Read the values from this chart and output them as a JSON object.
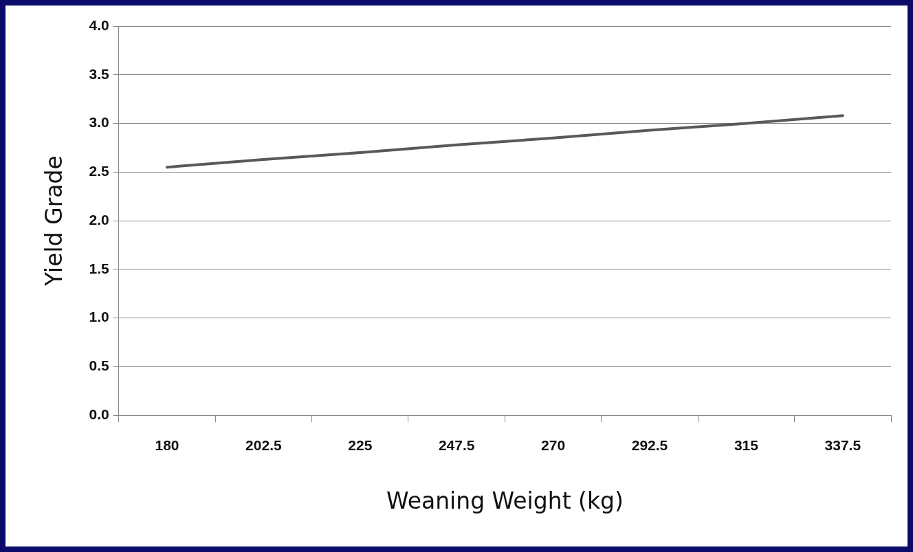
{
  "chart_data": {
    "type": "line",
    "xlabel": "Weaning Weight (kg)",
    "ylabel": "Yield Grade",
    "categories": [
      "180",
      "202.5",
      "225",
      "247.5",
      "270",
      "292.5",
      "315",
      "337.5"
    ],
    "series": [
      {
        "color": "#595959",
        "values": [
          2.55,
          2.63,
          2.7,
          2.78,
          2.85,
          2.93,
          3.0,
          3.08
        ]
      }
    ],
    "ylim": [
      0,
      4
    ],
    "yticks": [
      {
        "value": 0,
        "label": "0.0"
      },
      {
        "value": 0.5,
        "label": "0.5"
      },
      {
        "value": 1,
        "label": "1.0"
      },
      {
        "value": 1.5,
        "label": "1.5"
      },
      {
        "value": 2,
        "label": "2.0"
      },
      {
        "value": 2.5,
        "label": "2.5"
      },
      {
        "value": 3,
        "label": "3.0"
      },
      {
        "value": 3.5,
        "label": "3.5"
      },
      {
        "value": 4,
        "label": "4.0"
      }
    ],
    "grid": "y",
    "legend": false,
    "marker": "none",
    "line_style": "solid"
  }
}
